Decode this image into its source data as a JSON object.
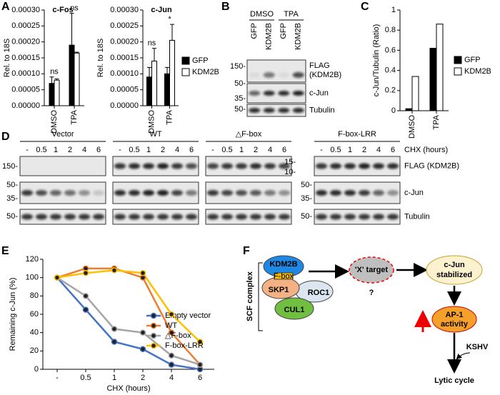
{
  "panel_labels": [
    "A",
    "B",
    "C",
    "D",
    "E",
    "F"
  ],
  "chart_data": [
    {
      "type": "bar",
      "title": "c-Fos",
      "ylabel": "Rel. to 18S",
      "categories": [
        "DMSO",
        "TPA"
      ],
      "series": [
        {
          "color": "#000000",
          "values": [
            7e-05,
            0.00019
          ],
          "errors": [
            2e-05,
            0.0001
          ]
        },
        {
          "color": "#ffffff",
          "values": [
            8e-05,
            0.000165
          ],
          "errors": [
            4e-06,
            3e-06
          ]
        }
      ],
      "annotations": [
        "ns",
        "ns"
      ],
      "ylim": [
        0,
        0.0003
      ],
      "yticks": [
        {
          "value": 0,
          "label": "0.00000"
        },
        {
          "value": 5e-05,
          "label": "0.00005"
        },
        {
          "value": 0.0001,
          "label": "0.00010"
        },
        {
          "value": 0.00015,
          "label": "0.00015"
        },
        {
          "value": 0.0002,
          "label": "0.00020"
        },
        {
          "value": 0.00025,
          "label": "0.00025"
        },
        {
          "value": 0.0003,
          "label": "0.00030"
        }
      ]
    },
    {
      "type": "bar",
      "title": "c-Jun",
      "ylabel": "Rel. to 18S",
      "categories": [
        "DMSO",
        "TPA"
      ],
      "series": [
        {
          "name": "GFP",
          "color": "#000000",
          "values": [
            9e-05,
            0.0001
          ],
          "errors": [
            3e-05,
            2e-05
          ]
        },
        {
          "name": "KDM2B",
          "color": "#ffffff",
          "values": [
            0.00014,
            0.000205
          ],
          "errors": [
            4e-05,
            5e-05
          ]
        }
      ],
      "annotations": [
        "ns",
        "*"
      ],
      "ylim": [
        0,
        0.0003
      ],
      "yticks": [
        {
          "value": 0,
          "label": "0.00000"
        },
        {
          "value": 5e-05,
          "label": "0.00005"
        },
        {
          "value": 0.0001,
          "label": "0.00010"
        },
        {
          "value": 0.00015,
          "label": "0.00015"
        },
        {
          "value": 0.0002,
          "label": "0.00020"
        },
        {
          "value": 0.00025,
          "label": "0.00025"
        },
        {
          "value": 0.0003,
          "label": "0.00030"
        }
      ]
    },
    {
      "type": "bar",
      "ylabel": "c-Jun/Tubulin (Ratio)",
      "categories": [
        "DMSO",
        "TPA"
      ],
      "series": [
        {
          "name": "GFP",
          "color": "#000000",
          "values": [
            0.02,
            0.62
          ]
        },
        {
          "name": "KDM2B",
          "color": "#ffffff",
          "values": [
            0.34,
            0.86
          ]
        }
      ],
      "ylim": [
        0,
        1
      ],
      "yticks": [
        0,
        0.2,
        0.4,
        0.6,
        0.8,
        1
      ]
    },
    {
      "type": "line",
      "xlabel": "CHX (hours)",
      "ylabel": "Remaining c-Jun (%)",
      "categories": [
        "-",
        "0.5",
        "1",
        "2",
        "4",
        "6"
      ],
      "series": [
        {
          "name": "Empty vector",
          "color": "#4472c4",
          "values": [
            100,
            65,
            30,
            22,
            5,
            0
          ]
        },
        {
          "name": "WT",
          "color": "#ed7d31",
          "values": [
            100,
            110,
            110,
            100,
            40,
            5
          ]
        },
        {
          "name": "△F-box",
          "color": "#a5a5a5",
          "values": [
            100,
            80,
            44,
            40,
            15,
            5
          ]
        },
        {
          "name": "F-box-LRR",
          "color": "#ffc000",
          "values": [
            100,
            105,
            108,
            105,
            60,
            30
          ]
        }
      ],
      "ylim": [
        0,
        120
      ],
      "yticks": [
        0,
        20,
        40,
        60,
        80,
        100,
        120
      ]
    }
  ],
  "blot_b": {
    "groups": [
      "DMSO",
      "TPA"
    ],
    "lanes": [
      "GFP",
      "KDM2B",
      "GFP",
      "KDM2B"
    ],
    "rows": [
      [
        "FLAG",
        "(KDM2B)"
      ],
      [
        "c-Jun"
      ],
      [
        "Tubulin"
      ]
    ],
    "mw": [
      "150-",
      "50-",
      "35-",
      "50-"
    ]
  },
  "blot_d": {
    "groups": [
      "Vector",
      "WT",
      "△F-box",
      "F-box-LRR"
    ],
    "lanes": [
      "-",
      "0.5",
      "1",
      "2",
      "4",
      "6"
    ],
    "lane_axis": "CHX (hours)",
    "rows": [
      "FLAG (KDM2B)",
      "c-Jun",
      "Tubulin"
    ],
    "mw_left": [
      "150-",
      "50-",
      "35-",
      "50-"
    ],
    "mw_right": [
      "15-",
      "10-",
      "50-",
      "35-",
      "50-"
    ]
  },
  "diagram": {
    "bracket_label": "SCF complex",
    "kdm2b": "KDM2B",
    "fbox": "F-box",
    "skp1": "SKP1",
    "roc1": "ROC1",
    "cul1": "CUL1",
    "target": "'X' target",
    "question": "?",
    "cjun": [
      "c-Jun",
      "stabilized"
    ],
    "ap1": [
      "AP-1",
      "activity"
    ],
    "kshv": "KSHV",
    "lytic": "Lytic cycle"
  }
}
